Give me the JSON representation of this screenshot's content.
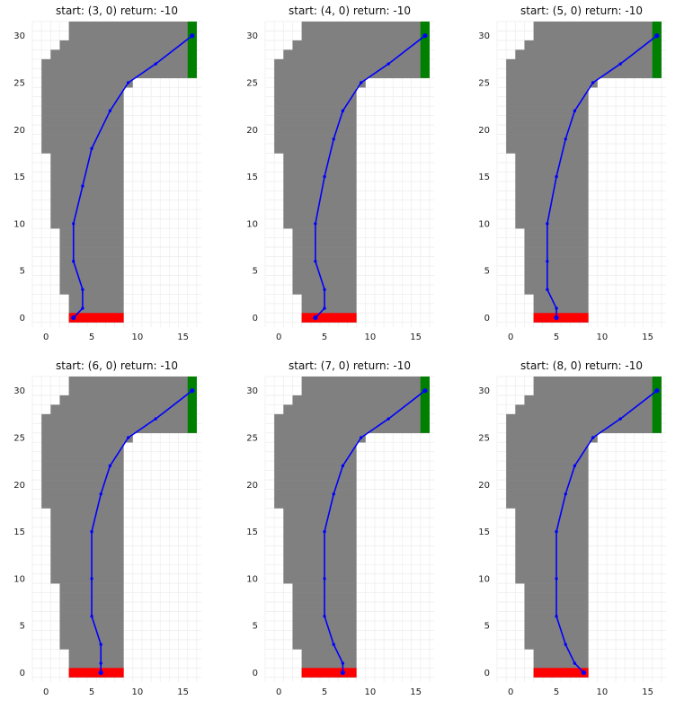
{
  "figure": {
    "background": "#ffffff"
  },
  "style": {
    "track_color": "#808080",
    "start_line_color": "#ff0000",
    "finish_line_color": "#008000",
    "path_color": "#0000ff",
    "grid_color": "#eeeeee"
  },
  "chart_data": [
    {
      "type": "line",
      "title": "start: (3, 0) return: -10",
      "xticks": [
        0,
        5,
        10,
        15
      ],
      "yticks": [
        0,
        5,
        10,
        15,
        20,
        25,
        30
      ],
      "xlim": [
        -1.5,
        17
      ],
      "ylim": [
        -1,
        31.5
      ],
      "grid": true,
      "track_rows": [
        [
          2.5,
          8.5
        ],
        [
          2.5,
          8.5
        ],
        [
          2.5,
          8.5
        ],
        [
          1.5,
          8.5
        ],
        [
          1.5,
          8.5
        ],
        [
          1.5,
          8.5
        ],
        [
          1.5,
          8.5
        ],
        [
          1.5,
          8.5
        ],
        [
          1.5,
          8.5
        ],
        [
          1.5,
          8.5
        ],
        [
          0.5,
          8.5
        ],
        [
          0.5,
          8.5
        ],
        [
          0.5,
          8.5
        ],
        [
          0.5,
          8.5
        ],
        [
          0.5,
          8.5
        ],
        [
          0.5,
          8.5
        ],
        [
          0.5,
          8.5
        ],
        [
          0.5,
          8.5
        ],
        [
          -0.5,
          8.5
        ],
        [
          -0.5,
          8.5
        ],
        [
          -0.5,
          8.5
        ],
        [
          -0.5,
          8.5
        ],
        [
          -0.5,
          8.5
        ],
        [
          -0.5,
          8.5
        ],
        [
          -0.5,
          8.5
        ],
        [
          -0.5,
          9.5
        ],
        [
          -0.5,
          16.5
        ],
        [
          -0.5,
          16.5
        ],
        [
          0.5,
          16.5
        ],
        [
          1.5,
          16.5
        ],
        [
          2.5,
          16.5
        ],
        [
          2.5,
          16.5
        ]
      ],
      "start_line": {
        "x": [
          2.5,
          8.5
        ],
        "y": [
          -0.5,
          0.5
        ]
      },
      "finish_line": {
        "x": [
          15.5,
          16.5
        ],
        "y": [
          25.5,
          31.5
        ]
      },
      "path": {
        "x": [
          3,
          4,
          4,
          3,
          3,
          4,
          5,
          7,
          9,
          12,
          16
        ],
        "y": [
          0,
          1,
          3,
          6,
          10,
          14,
          18,
          22,
          25,
          27,
          30
        ]
      }
    },
    {
      "type": "line",
      "title": "start: (4, 0) return: -10",
      "xticks": [
        0,
        5,
        10,
        15
      ],
      "yticks": [
        0,
        5,
        10,
        15,
        20,
        25,
        30
      ],
      "xlim": [
        -1.5,
        17
      ],
      "ylim": [
        -1,
        31.5
      ],
      "grid": true,
      "track_rows": [
        [
          2.5,
          8.5
        ],
        [
          2.5,
          8.5
        ],
        [
          2.5,
          8.5
        ],
        [
          1.5,
          8.5
        ],
        [
          1.5,
          8.5
        ],
        [
          1.5,
          8.5
        ],
        [
          1.5,
          8.5
        ],
        [
          1.5,
          8.5
        ],
        [
          1.5,
          8.5
        ],
        [
          1.5,
          8.5
        ],
        [
          0.5,
          8.5
        ],
        [
          0.5,
          8.5
        ],
        [
          0.5,
          8.5
        ],
        [
          0.5,
          8.5
        ],
        [
          0.5,
          8.5
        ],
        [
          0.5,
          8.5
        ],
        [
          0.5,
          8.5
        ],
        [
          0.5,
          8.5
        ],
        [
          -0.5,
          8.5
        ],
        [
          -0.5,
          8.5
        ],
        [
          -0.5,
          8.5
        ],
        [
          -0.5,
          8.5
        ],
        [
          -0.5,
          8.5
        ],
        [
          -0.5,
          8.5
        ],
        [
          -0.5,
          8.5
        ],
        [
          -0.5,
          9.5
        ],
        [
          -0.5,
          16.5
        ],
        [
          -0.5,
          16.5
        ],
        [
          0.5,
          16.5
        ],
        [
          1.5,
          16.5
        ],
        [
          2.5,
          16.5
        ],
        [
          2.5,
          16.5
        ]
      ],
      "start_line": {
        "x": [
          2.5,
          8.5
        ],
        "y": [
          -0.5,
          0.5
        ]
      },
      "finish_line": {
        "x": [
          15.5,
          16.5
        ],
        "y": [
          25.5,
          31.5
        ]
      },
      "path": {
        "x": [
          4,
          5,
          5,
          4,
          4,
          5,
          6,
          7,
          9,
          12,
          16
        ],
        "y": [
          0,
          1,
          3,
          6,
          10,
          15,
          19,
          22,
          25,
          27,
          30
        ]
      }
    },
    {
      "type": "line",
      "title": "start: (5, 0) return: -10",
      "xticks": [
        0,
        5,
        10,
        15
      ],
      "yticks": [
        0,
        5,
        10,
        15,
        20,
        25,
        30
      ],
      "xlim": [
        -1.5,
        17
      ],
      "ylim": [
        -1,
        31.5
      ],
      "grid": true,
      "track_rows": [
        [
          2.5,
          8.5
        ],
        [
          2.5,
          8.5
        ],
        [
          2.5,
          8.5
        ],
        [
          1.5,
          8.5
        ],
        [
          1.5,
          8.5
        ],
        [
          1.5,
          8.5
        ],
        [
          1.5,
          8.5
        ],
        [
          1.5,
          8.5
        ],
        [
          1.5,
          8.5
        ],
        [
          1.5,
          8.5
        ],
        [
          0.5,
          8.5
        ],
        [
          0.5,
          8.5
        ],
        [
          0.5,
          8.5
        ],
        [
          0.5,
          8.5
        ],
        [
          0.5,
          8.5
        ],
        [
          0.5,
          8.5
        ],
        [
          0.5,
          8.5
        ],
        [
          0.5,
          8.5
        ],
        [
          -0.5,
          8.5
        ],
        [
          -0.5,
          8.5
        ],
        [
          -0.5,
          8.5
        ],
        [
          -0.5,
          8.5
        ],
        [
          -0.5,
          8.5
        ],
        [
          -0.5,
          8.5
        ],
        [
          -0.5,
          8.5
        ],
        [
          -0.5,
          9.5
        ],
        [
          -0.5,
          16.5
        ],
        [
          -0.5,
          16.5
        ],
        [
          0.5,
          16.5
        ],
        [
          1.5,
          16.5
        ],
        [
          2.5,
          16.5
        ],
        [
          2.5,
          16.5
        ]
      ],
      "start_line": {
        "x": [
          2.5,
          8.5
        ],
        "y": [
          -0.5,
          0.5
        ]
      },
      "finish_line": {
        "x": [
          15.5,
          16.5
        ],
        "y": [
          25.5,
          31.5
        ]
      },
      "path": {
        "x": [
          5,
          5,
          4,
          4,
          4,
          5,
          6,
          7,
          9,
          12,
          16
        ],
        "y": [
          0,
          1,
          3,
          6,
          10,
          15,
          19,
          22,
          25,
          27,
          30
        ]
      }
    },
    {
      "type": "line",
      "title": "start: (6, 0) return: -10",
      "xticks": [
        0,
        5,
        10,
        15
      ],
      "yticks": [
        0,
        5,
        10,
        15,
        20,
        25,
        30
      ],
      "xlim": [
        -1.5,
        17
      ],
      "ylim": [
        -1,
        31.5
      ],
      "grid": true,
      "track_rows": [
        [
          2.5,
          8.5
        ],
        [
          2.5,
          8.5
        ],
        [
          2.5,
          8.5
        ],
        [
          1.5,
          8.5
        ],
        [
          1.5,
          8.5
        ],
        [
          1.5,
          8.5
        ],
        [
          1.5,
          8.5
        ],
        [
          1.5,
          8.5
        ],
        [
          1.5,
          8.5
        ],
        [
          1.5,
          8.5
        ],
        [
          0.5,
          8.5
        ],
        [
          0.5,
          8.5
        ],
        [
          0.5,
          8.5
        ],
        [
          0.5,
          8.5
        ],
        [
          0.5,
          8.5
        ],
        [
          0.5,
          8.5
        ],
        [
          0.5,
          8.5
        ],
        [
          0.5,
          8.5
        ],
        [
          -0.5,
          8.5
        ],
        [
          -0.5,
          8.5
        ],
        [
          -0.5,
          8.5
        ],
        [
          -0.5,
          8.5
        ],
        [
          -0.5,
          8.5
        ],
        [
          -0.5,
          8.5
        ],
        [
          -0.5,
          8.5
        ],
        [
          -0.5,
          9.5
        ],
        [
          -0.5,
          16.5
        ],
        [
          -0.5,
          16.5
        ],
        [
          0.5,
          16.5
        ],
        [
          1.5,
          16.5
        ],
        [
          2.5,
          16.5
        ],
        [
          2.5,
          16.5
        ]
      ],
      "start_line": {
        "x": [
          2.5,
          8.5
        ],
        "y": [
          -0.5,
          0.5
        ]
      },
      "finish_line": {
        "x": [
          15.5,
          16.5
        ],
        "y": [
          25.5,
          31.5
        ]
      },
      "path": {
        "x": [
          6,
          6,
          6,
          5,
          5,
          5,
          6,
          7,
          9,
          12,
          16
        ],
        "y": [
          0,
          1,
          3,
          6,
          10,
          15,
          19,
          22,
          25,
          27,
          30
        ]
      }
    },
    {
      "type": "line",
      "title": "start: (7, 0) return: -10",
      "xticks": [
        0,
        5,
        10,
        15
      ],
      "yticks": [
        0,
        5,
        10,
        15,
        20,
        25,
        30
      ],
      "xlim": [
        -1.5,
        17
      ],
      "ylim": [
        -1,
        31.5
      ],
      "grid": true,
      "track_rows": [
        [
          2.5,
          8.5
        ],
        [
          2.5,
          8.5
        ],
        [
          2.5,
          8.5
        ],
        [
          1.5,
          8.5
        ],
        [
          1.5,
          8.5
        ],
        [
          1.5,
          8.5
        ],
        [
          1.5,
          8.5
        ],
        [
          1.5,
          8.5
        ],
        [
          1.5,
          8.5
        ],
        [
          1.5,
          8.5
        ],
        [
          0.5,
          8.5
        ],
        [
          0.5,
          8.5
        ],
        [
          0.5,
          8.5
        ],
        [
          0.5,
          8.5
        ],
        [
          0.5,
          8.5
        ],
        [
          0.5,
          8.5
        ],
        [
          0.5,
          8.5
        ],
        [
          0.5,
          8.5
        ],
        [
          -0.5,
          8.5
        ],
        [
          -0.5,
          8.5
        ],
        [
          -0.5,
          8.5
        ],
        [
          -0.5,
          8.5
        ],
        [
          -0.5,
          8.5
        ],
        [
          -0.5,
          8.5
        ],
        [
          -0.5,
          8.5
        ],
        [
          -0.5,
          9.5
        ],
        [
          -0.5,
          16.5
        ],
        [
          -0.5,
          16.5
        ],
        [
          0.5,
          16.5
        ],
        [
          1.5,
          16.5
        ],
        [
          2.5,
          16.5
        ],
        [
          2.5,
          16.5
        ]
      ],
      "start_line": {
        "x": [
          2.5,
          8.5
        ],
        "y": [
          -0.5,
          0.5
        ]
      },
      "finish_line": {
        "x": [
          15.5,
          16.5
        ],
        "y": [
          25.5,
          31.5
        ]
      },
      "path": {
        "x": [
          7,
          7,
          6,
          5,
          5,
          5,
          6,
          7,
          9,
          12,
          16
        ],
        "y": [
          0,
          1,
          3,
          6,
          10,
          15,
          19,
          22,
          25,
          27,
          30
        ]
      }
    },
    {
      "type": "line",
      "title": "start: (8, 0) return: -10",
      "xticks": [
        0,
        5,
        10,
        15
      ],
      "yticks": [
        0,
        5,
        10,
        15,
        20,
        25,
        30
      ],
      "xlim": [
        -1.5,
        17
      ],
      "ylim": [
        -1,
        31.5
      ],
      "grid": true,
      "track_rows": [
        [
          2.5,
          8.5
        ],
        [
          2.5,
          8.5
        ],
        [
          2.5,
          8.5
        ],
        [
          1.5,
          8.5
        ],
        [
          1.5,
          8.5
        ],
        [
          1.5,
          8.5
        ],
        [
          1.5,
          8.5
        ],
        [
          1.5,
          8.5
        ],
        [
          1.5,
          8.5
        ],
        [
          1.5,
          8.5
        ],
        [
          0.5,
          8.5
        ],
        [
          0.5,
          8.5
        ],
        [
          0.5,
          8.5
        ],
        [
          0.5,
          8.5
        ],
        [
          0.5,
          8.5
        ],
        [
          0.5,
          8.5
        ],
        [
          0.5,
          8.5
        ],
        [
          0.5,
          8.5
        ],
        [
          -0.5,
          8.5
        ],
        [
          -0.5,
          8.5
        ],
        [
          -0.5,
          8.5
        ],
        [
          -0.5,
          8.5
        ],
        [
          -0.5,
          8.5
        ],
        [
          -0.5,
          8.5
        ],
        [
          -0.5,
          8.5
        ],
        [
          -0.5,
          9.5
        ],
        [
          -0.5,
          16.5
        ],
        [
          -0.5,
          16.5
        ],
        [
          0.5,
          16.5
        ],
        [
          1.5,
          16.5
        ],
        [
          2.5,
          16.5
        ],
        [
          2.5,
          16.5
        ]
      ],
      "start_line": {
        "x": [
          2.5,
          8.5
        ],
        "y": [
          -0.5,
          0.5
        ]
      },
      "finish_line": {
        "x": [
          15.5,
          16.5
        ],
        "y": [
          25.5,
          31.5
        ]
      },
      "path": {
        "x": [
          8,
          7,
          6,
          5,
          5,
          5,
          6,
          7,
          9,
          12,
          16
        ],
        "y": [
          0,
          1,
          3,
          6,
          10,
          15,
          19,
          22,
          25,
          27,
          30
        ]
      }
    }
  ]
}
